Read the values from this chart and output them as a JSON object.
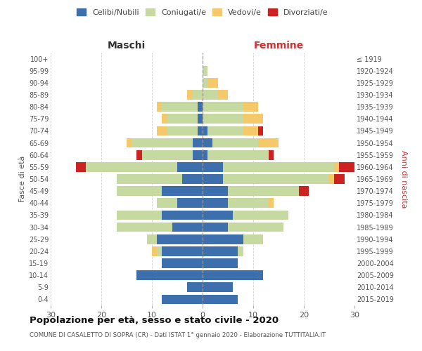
{
  "age_groups": [
    "0-4",
    "5-9",
    "10-14",
    "15-19",
    "20-24",
    "25-29",
    "30-34",
    "35-39",
    "40-44",
    "45-49",
    "50-54",
    "55-59",
    "60-64",
    "65-69",
    "70-74",
    "75-79",
    "80-84",
    "85-89",
    "90-94",
    "95-99",
    "100+"
  ],
  "birth_years": [
    "2015-2019",
    "2010-2014",
    "2005-2009",
    "2000-2004",
    "1995-1999",
    "1990-1994",
    "1985-1989",
    "1980-1984",
    "1975-1979",
    "1970-1974",
    "1965-1969",
    "1960-1964",
    "1955-1959",
    "1950-1954",
    "1945-1949",
    "1940-1944",
    "1935-1939",
    "1930-1934",
    "1925-1929",
    "1920-1924",
    "≤ 1919"
  ],
  "colors": {
    "celibe": "#3d6fad",
    "coniugato": "#c5d9a0",
    "vedovo": "#f5c96a",
    "divorziato": "#cc2222"
  },
  "maschi": {
    "celibe": [
      8,
      3,
      13,
      8,
      8,
      9,
      6,
      8,
      5,
      8,
      4,
      5,
      2,
      2,
      1,
      1,
      1,
      0,
      0,
      0,
      0
    ],
    "coniugato": [
      0,
      0,
      0,
      0,
      1,
      2,
      11,
      9,
      4,
      9,
      13,
      18,
      10,
      12,
      6,
      6,
      7,
      2,
      0,
      0,
      0
    ],
    "vedovo": [
      0,
      0,
      0,
      0,
      1,
      0,
      0,
      0,
      0,
      0,
      0,
      0,
      0,
      1,
      2,
      1,
      1,
      1,
      0,
      0,
      0
    ],
    "divorziato": [
      0,
      0,
      0,
      0,
      0,
      0,
      0,
      0,
      0,
      0,
      0,
      2,
      1,
      0,
      0,
      0,
      0,
      0,
      0,
      0,
      0
    ]
  },
  "femmine": {
    "celibe": [
      7,
      6,
      12,
      7,
      7,
      8,
      5,
      6,
      5,
      5,
      4,
      4,
      1,
      2,
      1,
      0,
      0,
      0,
      0,
      0,
      0
    ],
    "coniugato": [
      0,
      0,
      0,
      0,
      1,
      4,
      11,
      11,
      8,
      14,
      21,
      22,
      12,
      9,
      7,
      8,
      8,
      3,
      1,
      1,
      0
    ],
    "vedovo": [
      0,
      0,
      0,
      0,
      0,
      0,
      0,
      0,
      1,
      0,
      1,
      1,
      0,
      4,
      3,
      4,
      3,
      2,
      2,
      0,
      0
    ],
    "divorziato": [
      0,
      0,
      0,
      0,
      0,
      0,
      0,
      0,
      0,
      2,
      2,
      3,
      1,
      0,
      1,
      0,
      0,
      0,
      0,
      0,
      0
    ]
  },
  "xlim": 30,
  "title": "Popolazione per età, sesso e stato civile - 2020",
  "subtitle": "COMUNE DI CASALETTO DI SOPRA (CR) - Dati ISTAT 1° gennaio 2020 - Elaborazione TUTTITALIA.IT",
  "xlabel_left": "Maschi",
  "xlabel_right": "Femmine",
  "ylabel_left": "Fasce di età",
  "ylabel_right": "Anni di nascita",
  "legend_labels": [
    "Celibi/Nubili",
    "Coniugati/e",
    "Vedovi/e",
    "Divorziati/e"
  ],
  "background_color": "#ffffff",
  "grid_color": "#bbbbbb"
}
